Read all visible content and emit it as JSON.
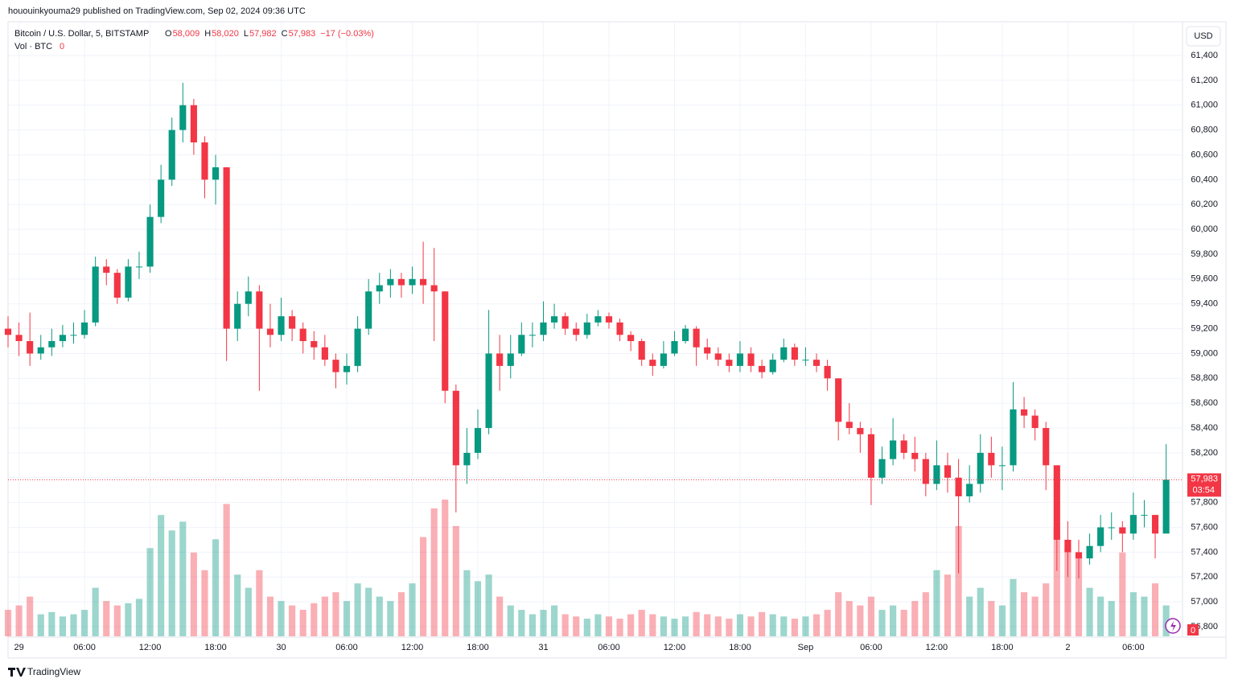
{
  "header": {
    "publisher": "hououinkyouma29 published on TradingView.com, Sep 02, 2024 09:36 UTC"
  },
  "chart_data": {
    "type": "candlestick",
    "symbol": "Bitcoin / U.S. Dollar, 5, BITSTAMP",
    "ohlc_legend": [
      {
        "key": "O",
        "value": 58009,
        "label": "58,009"
      },
      {
        "key": "H",
        "value": 58020,
        "label": "58,020"
      },
      {
        "key": "L",
        "value": 57982,
        "label": "57,982"
      },
      {
        "key": "C",
        "value": 57983,
        "label": "57,983"
      }
    ],
    "change": "−17 (−0.03%)",
    "volume_legend": "Vol · BTC",
    "volume_value": 0,
    "currency": "USD",
    "last_price": {
      "value": 57983,
      "label": "57,983"
    },
    "countdown": "03:54",
    "up_color": "#089981",
    "down_color": "#f23645",
    "x": [
      -1,
      0,
      1,
      2,
      3,
      4,
      5,
      6,
      7,
      8,
      9,
      10,
      11,
      12,
      13,
      14,
      15,
      16,
      17,
      18,
      19,
      20,
      21,
      22,
      23,
      24,
      25,
      26,
      27,
      28,
      29,
      30,
      31,
      32,
      33,
      34,
      35,
      36,
      37,
      38,
      39,
      40,
      41,
      42,
      43,
      44,
      45,
      46,
      47,
      48,
      49,
      50,
      51,
      52,
      53,
      54,
      55,
      56,
      57,
      58,
      59,
      60,
      61,
      62,
      63,
      64,
      65,
      66,
      67,
      68,
      69,
      70,
      71,
      72,
      73,
      74,
      75,
      76,
      77,
      78,
      79,
      80,
      81,
      82,
      83,
      84,
      85,
      86,
      87,
      88,
      89,
      90,
      91,
      92,
      93,
      94,
      95,
      96,
      97,
      98,
      99,
      100,
      101,
      102,
      103,
      104,
      105
    ],
    "open": [
      59200,
      59150,
      59100,
      59000,
      59050,
      59100,
      59150,
      59150,
      59250,
      59700,
      59650,
      59450,
      59700,
      59700,
      60100,
      60400,
      60800,
      61000,
      60700,
      60400,
      60500,
      59200,
      59400,
      59500,
      59200,
      59150,
      59300,
      59200,
      59100,
      59050,
      58950,
      58850,
      58900,
      59200,
      59500,
      59550,
      59600,
      59550,
      59600,
      59550,
      59500,
      58700,
      58100,
      58200,
      58400,
      59000,
      58900,
      59000,
      59150,
      59150,
      59250,
      59300,
      59200,
      59150,
      59250,
      59300,
      59250,
      59150,
      59100,
      58950,
      58900,
      59000,
      59100,
      59200,
      59050,
      59000,
      58950,
      58900,
      59000,
      58900,
      58850,
      58950,
      59050,
      58950,
      58950,
      58900,
      58800,
      58450,
      58400,
      58350,
      58000,
      58150,
      58300,
      58200,
      58150,
      57950,
      58100,
      58000,
      57850,
      57950,
      58200,
      58100,
      58100,
      58550,
      58500,
      58400,
      58100,
      57500,
      57400,
      57350,
      57450,
      57600,
      57600,
      57550,
      57700,
      57700,
      57550
    ],
    "high": [
      59300,
      59250,
      59330,
      59150,
      59200,
      59230,
      59250,
      59350,
      59780,
      59760,
      59680,
      59760,
      59820,
      60200,
      60520,
      60900,
      61180,
      61050,
      60750,
      60600,
      60500,
      59500,
      59620,
      59550,
      59400,
      59450,
      59350,
      59250,
      59180,
      59150,
      59000,
      59000,
      59300,
      59600,
      59650,
      59680,
      59650,
      59700,
      59900,
      59850,
      59500,
      58750,
      58400,
      58550,
      59350,
      59150,
      59150,
      59250,
      59250,
      59420,
      59400,
      59330,
      59250,
      59320,
      59350,
      59330,
      59280,
      59180,
      59120,
      59000,
      59100,
      59180,
      59230,
      59220,
      59120,
      59050,
      59000,
      59100,
      59050,
      58950,
      59000,
      59120,
      59080,
      59050,
      59000,
      58950,
      58800,
      58600,
      58450,
      58400,
      58250,
      58480,
      58350,
      58330,
      58200,
      58300,
      58200,
      58150,
      58100,
      58350,
      58330,
      58250,
      58770,
      58650,
      58550,
      58450,
      58100,
      57650,
      57500,
      57550,
      57700,
      57720,
      57650,
      57880,
      57820,
      57700,
      58270
    ],
    "low": [
      59050,
      58980,
      58900,
      58950,
      58980,
      59050,
      59080,
      59120,
      59220,
      59550,
      59400,
      59420,
      59600,
      59650,
      60050,
      60350,
      60700,
      60600,
      60250,
      60200,
      58940,
      59100,
      59300,
      58700,
      59050,
      59100,
      59100,
      59000,
      58950,
      58900,
      58720,
      58750,
      58850,
      59150,
      59400,
      59450,
      59450,
      59480,
      59400,
      59100,
      58600,
      57720,
      57950,
      58150,
      58350,
      58700,
      58800,
      58980,
      59050,
      59100,
      59200,
      59150,
      59100,
      59120,
      59220,
      59200,
      59100,
      59020,
      58900,
      58820,
      58880,
      58980,
      59080,
      58900,
      58950,
      58900,
      58850,
      58850,
      58850,
      58800,
      58830,
      58930,
      58900,
      58900,
      58850,
      58700,
      58300,
      58350,
      58200,
      57780,
      57950,
      58100,
      58150,
      58050,
      57850,
      57900,
      57880,
      57230,
      57800,
      57880,
      58000,
      57900,
      58050,
      58400,
      58300,
      57900,
      57250,
      57200,
      57190,
      57300,
      57400,
      57500,
      57400,
      57500,
      57600,
      57350,
      57550
    ],
    "close": [
      59150,
      59100,
      59000,
      59050,
      59100,
      59150,
      59150,
      59250,
      59700,
      59650,
      59450,
      59700,
      59700,
      60100,
      60400,
      60800,
      61000,
      60700,
      60400,
      60500,
      59200,
      59400,
      59500,
      59200,
      59150,
      59300,
      59200,
      59100,
      59050,
      58950,
      58850,
      58900,
      59200,
      59500,
      59550,
      59600,
      59550,
      59600,
      59550,
      59500,
      58700,
      58100,
      58200,
      58400,
      59000,
      58900,
      59000,
      59150,
      59150,
      59250,
      59300,
      59200,
      59150,
      59250,
      59300,
      59250,
      59150,
      59100,
      58950,
      58900,
      59000,
      59100,
      59200,
      59050,
      59000,
      58950,
      58900,
      59000,
      58900,
      58850,
      58950,
      59050,
      58950,
      58950,
      58900,
      58800,
      58450,
      58400,
      58350,
      58000,
      58150,
      58300,
      58200,
      58150,
      57950,
      58100,
      58000,
      57850,
      57950,
      58200,
      58100,
      58100,
      58550,
      58500,
      58400,
      58100,
      57500,
      57400,
      57350,
      57450,
      57600,
      57600,
      57550,
      57700,
      57700,
      57550,
      57983
    ],
    "volume": [
      12,
      14,
      18,
      10,
      11,
      9,
      10,
      12,
      22,
      16,
      14,
      15,
      17,
      40,
      55,
      48,
      52,
      38,
      30,
      44,
      60,
      28,
      22,
      30,
      18,
      16,
      14,
      12,
      15,
      18,
      20,
      16,
      24,
      22,
      18,
      16,
      20,
      24,
      45,
      58,
      62,
      50,
      30,
      25,
      28,
      18,
      14,
      12,
      10,
      12,
      14,
      10,
      9,
      8,
      10,
      9,
      8,
      10,
      12,
      10,
      9,
      8,
      9,
      11,
      10,
      9,
      8,
      10,
      9,
      11,
      10,
      9,
      8,
      9,
      10,
      12,
      20,
      16,
      14,
      18,
      12,
      14,
      12,
      16,
      20,
      30,
      28,
      50,
      18,
      22,
      16,
      14,
      26,
      20,
      18,
      24,
      48,
      40,
      36,
      22,
      18,
      16,
      38,
      20,
      18,
      24,
      14
    ],
    "xlim": [
      -1,
      106.5
    ],
    "ylim": [
      56716,
      61672
    ],
    "xticks": [
      {
        "value": 0,
        "label": "29"
      },
      {
        "value": 6,
        "label": "06:00"
      },
      {
        "value": 12,
        "label": "12:00"
      },
      {
        "value": 18,
        "label": "18:00"
      },
      {
        "value": 24,
        "label": "30"
      },
      {
        "value": 30,
        "label": "06:00"
      },
      {
        "value": 36,
        "label": "12:00"
      },
      {
        "value": 42,
        "label": "18:00"
      },
      {
        "value": 48,
        "label": "31"
      },
      {
        "value": 54,
        "label": "06:00"
      },
      {
        "value": 60,
        "label": "12:00"
      },
      {
        "value": 66,
        "label": "18:00"
      },
      {
        "value": 72,
        "label": "Sep"
      },
      {
        "value": 78,
        "label": "06:00"
      },
      {
        "value": 84,
        "label": "12:00"
      },
      {
        "value": 90,
        "label": "18:00"
      },
      {
        "value": 96,
        "label": "2"
      },
      {
        "value": 102,
        "label": "06:00"
      }
    ],
    "yticks": [
      {
        "value": 56800,
        "label": "56,800"
      },
      {
        "value": 57000,
        "label": "57,000"
      },
      {
        "value": 57200,
        "label": "57,200"
      },
      {
        "value": 57400,
        "label": "57,400"
      },
      {
        "value": 57600,
        "label": "57,600"
      },
      {
        "value": 57800,
        "label": "57,800"
      },
      {
        "value": 58000,
        "label": "58,000"
      },
      {
        "value": 58200,
        "label": "58,200"
      },
      {
        "value": 58400,
        "label": "58,400"
      },
      {
        "value": 58600,
        "label": "58,600"
      },
      {
        "value": 58800,
        "label": "58,800"
      },
      {
        "value": 59000,
        "label": "59,000"
      },
      {
        "value": 59200,
        "label": "59,200"
      },
      {
        "value": 59400,
        "label": "59,400"
      },
      {
        "value": 59600,
        "label": "59,600"
      },
      {
        "value": 59800,
        "label": "59,800"
      },
      {
        "value": 60000,
        "label": "60,000"
      },
      {
        "value": 60200,
        "label": "60,200"
      },
      {
        "value": 60400,
        "label": "60,400"
      },
      {
        "value": 60600,
        "label": "60,600"
      },
      {
        "value": 60800,
        "label": "60,800"
      },
      {
        "value": 61000,
        "label": "61,000"
      },
      {
        "value": 61200,
        "label": "61,200"
      },
      {
        "value": 61400,
        "label": "61,400"
      }
    ],
    "grid": true
  },
  "footer": {
    "brand": "TradingView"
  }
}
